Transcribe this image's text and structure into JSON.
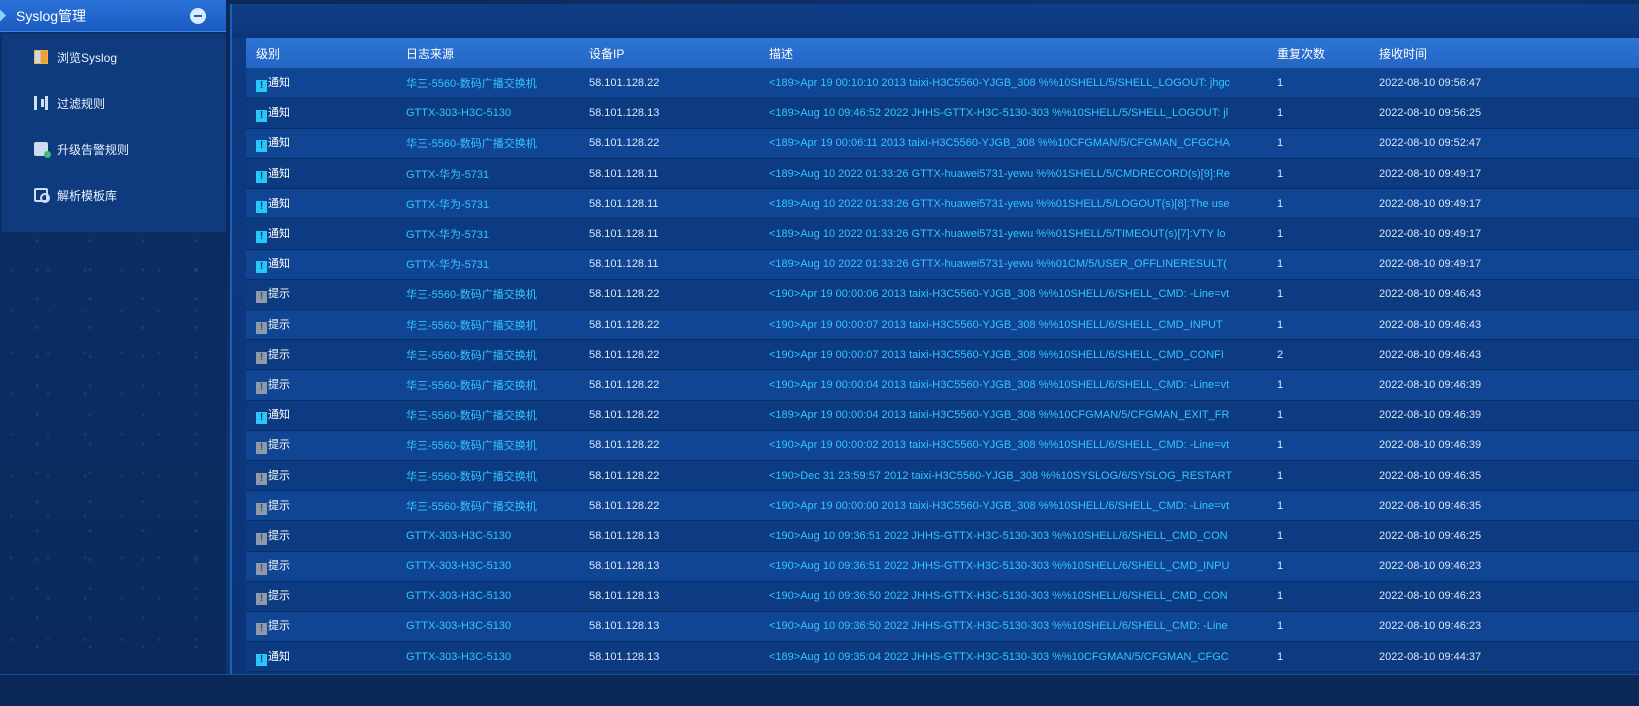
{
  "sidebar": {
    "title": "Syslog管理",
    "items": [
      {
        "label": "浏览Syslog",
        "icon": "browse-log-icon"
      },
      {
        "label": "过滤规则",
        "icon": "filter-rule-icon"
      },
      {
        "label": "升级告警规则",
        "icon": "upgrade-alarm-icon"
      },
      {
        "label": "解析模板库",
        "icon": "template-library-icon"
      }
    ]
  },
  "table": {
    "headers": {
      "level": "级别",
      "source": "日志来源",
      "ip": "设备IP",
      "desc": "描述",
      "repeat": "重复次数",
      "time": "接收时间"
    },
    "rows": [
      {
        "level": "通知",
        "kind": "notice",
        "source": "华三-5560-数码广播交换机",
        "ip": "58.101.128.22",
        "desc": "<189>Apr 19 00:10:10 2013 taixi-H3C5560-YJGB_308 %%10SHELL/5/SHELL_LOGOUT: jhgc",
        "repeat": "1",
        "time": "2022-08-10 09:56:47"
      },
      {
        "level": "通知",
        "kind": "notice",
        "source": "GTTX-303-H3C-5130",
        "ip": "58.101.128.13",
        "desc": "<189>Aug 10 09:46:52 2022 JHHS-GTTX-H3C-5130-303 %%10SHELL/5/SHELL_LOGOUT: jl",
        "repeat": "1",
        "time": "2022-08-10 09:56:25"
      },
      {
        "level": "通知",
        "kind": "notice",
        "source": "华三-5560-数码广播交换机",
        "ip": "58.101.128.22",
        "desc": "<189>Apr 19 00:06:11 2013 taixi-H3C5560-YJGB_308 %%10CFGMAN/5/CFGMAN_CFGCHA",
        "repeat": "1",
        "time": "2022-08-10 09:52:47"
      },
      {
        "level": "通知",
        "kind": "notice",
        "source": "GTTX-华为-5731",
        "ip": "58.101.128.11",
        "desc": "<189>Aug 10 2022 01:33:26 GTTX-huawei5731-yewu %%01SHELL/5/CMDRECORD(s)[9]:Re",
        "repeat": "1",
        "time": "2022-08-10 09:49:17"
      },
      {
        "level": "通知",
        "kind": "notice",
        "source": "GTTX-华为-5731",
        "ip": "58.101.128.11",
        "desc": "<189>Aug 10 2022 01:33:26 GTTX-huawei5731-yewu %%01SHELL/5/LOGOUT(s)[8]:The use",
        "repeat": "1",
        "time": "2022-08-10 09:49:17"
      },
      {
        "level": "通知",
        "kind": "notice",
        "source": "GTTX-华为-5731",
        "ip": "58.101.128.11",
        "desc": "<189>Aug 10 2022 01:33:26 GTTX-huawei5731-yewu %%01SHELL/5/TIMEOUT(s)[7]:VTY lo",
        "repeat": "1",
        "time": "2022-08-10 09:49:17"
      },
      {
        "level": "通知",
        "kind": "notice",
        "source": "GTTX-华为-5731",
        "ip": "58.101.128.11",
        "desc": "<189>Aug 10 2022 01:33:26 GTTX-huawei5731-yewu %%01CM/5/USER_OFFLINERESULT(",
        "repeat": "1",
        "time": "2022-08-10 09:49:17"
      },
      {
        "level": "提示",
        "kind": "hint",
        "source": "华三-5560-数码广播交换机",
        "ip": "58.101.128.22",
        "desc": "<190>Apr 19 00:00:06 2013 taixi-H3C5560-YJGB_308 %%10SHELL/6/SHELL_CMD: -Line=vt",
        "repeat": "1",
        "time": "2022-08-10 09:46:43"
      },
      {
        "level": "提示",
        "kind": "hint",
        "source": "华三-5560-数码广播交换机",
        "ip": "58.101.128.22",
        "desc": "<190>Apr 19 00:00:07 2013 taixi-H3C5560-YJGB_308 %%10SHELL/6/SHELL_CMD_INPUT",
        "repeat": "1",
        "time": "2022-08-10 09:46:43"
      },
      {
        "level": "提示",
        "kind": "hint",
        "source": "华三-5560-数码广播交换机",
        "ip": "58.101.128.22",
        "desc": "<190>Apr 19 00:00:07 2013 taixi-H3C5560-YJGB_308 %%10SHELL/6/SHELL_CMD_CONFI",
        "repeat": "2",
        "time": "2022-08-10 09:46:43"
      },
      {
        "level": "提示",
        "kind": "hint",
        "source": "华三-5560-数码广播交换机",
        "ip": "58.101.128.22",
        "desc": "<190>Apr 19 00:00:04 2013 taixi-H3C5560-YJGB_308 %%10SHELL/6/SHELL_CMD: -Line=vt",
        "repeat": "1",
        "time": "2022-08-10 09:46:39"
      },
      {
        "level": "通知",
        "kind": "notice",
        "source": "华三-5560-数码广播交换机",
        "ip": "58.101.128.22",
        "desc": "<189>Apr 19 00:00:04 2013 taixi-H3C5560-YJGB_308 %%10CFGMAN/5/CFGMAN_EXIT_FR",
        "repeat": "1",
        "time": "2022-08-10 09:46:39"
      },
      {
        "level": "提示",
        "kind": "hint",
        "source": "华三-5560-数码广播交换机",
        "ip": "58.101.128.22",
        "desc": "<190>Apr 19 00:00:02 2013 taixi-H3C5560-YJGB_308 %%10SHELL/6/SHELL_CMD: -Line=vt",
        "repeat": "1",
        "time": "2022-08-10 09:46:39"
      },
      {
        "level": "提示",
        "kind": "hint",
        "source": "华三-5560-数码广播交换机",
        "ip": "58.101.128.22",
        "desc": "<190>Dec 31 23:59:57 2012 taixi-H3C5560-YJGB_308 %%10SYSLOG/6/SYSLOG_RESTART",
        "repeat": "1",
        "time": "2022-08-10 09:46:35"
      },
      {
        "level": "提示",
        "kind": "hint",
        "source": "华三-5560-数码广播交换机",
        "ip": "58.101.128.22",
        "desc": "<190>Apr 19 00:00:00 2013 taixi-H3C5560-YJGB_308 %%10SHELL/6/SHELL_CMD: -Line=vt",
        "repeat": "1",
        "time": "2022-08-10 09:46:35"
      },
      {
        "level": "提示",
        "kind": "hint",
        "source": "GTTX-303-H3C-5130",
        "ip": "58.101.128.13",
        "desc": "<190>Aug 10 09:36:51 2022 JHHS-GTTX-H3C-5130-303 %%10SHELL/6/SHELL_CMD_CON",
        "repeat": "1",
        "time": "2022-08-10 09:46:25"
      },
      {
        "level": "提示",
        "kind": "hint",
        "source": "GTTX-303-H3C-5130",
        "ip": "58.101.128.13",
        "desc": "<190>Aug 10 09:36:51 2022 JHHS-GTTX-H3C-5130-303 %%10SHELL/6/SHELL_CMD_INPU",
        "repeat": "1",
        "time": "2022-08-10 09:46:23"
      },
      {
        "level": "提示",
        "kind": "hint",
        "source": "GTTX-303-H3C-5130",
        "ip": "58.101.128.13",
        "desc": "<190>Aug 10 09:36:50 2022 JHHS-GTTX-H3C-5130-303 %%10SHELL/6/SHELL_CMD_CON",
        "repeat": "1",
        "time": "2022-08-10 09:46:23"
      },
      {
        "level": "提示",
        "kind": "hint",
        "source": "GTTX-303-H3C-5130",
        "ip": "58.101.128.13",
        "desc": "<190>Aug 10 09:36:50 2022 JHHS-GTTX-H3C-5130-303 %%10SHELL/6/SHELL_CMD: -Line",
        "repeat": "1",
        "time": "2022-08-10 09:46:23"
      },
      {
        "level": "通知",
        "kind": "notice",
        "source": "GTTX-303-H3C-5130",
        "ip": "58.101.128.13",
        "desc": "<189>Aug 10 09:35:04 2022 JHHS-GTTX-H3C-5130-303 %%10CFGMAN/5/CFGMAN_CFGC",
        "repeat": "1",
        "time": "2022-08-10 09:44:37"
      }
    ]
  },
  "colors": {
    "accent": "#2a72d8",
    "link": "#33c6ff",
    "notice": "#29c7f5",
    "hint": "#8e9aab"
  }
}
